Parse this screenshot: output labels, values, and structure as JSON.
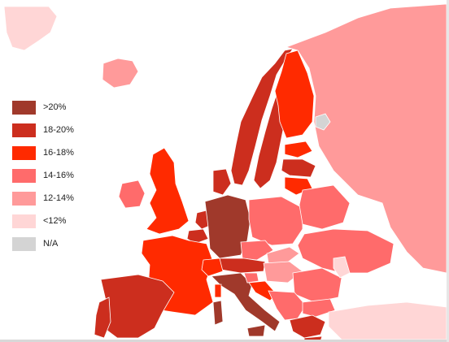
{
  "legend": {
    "items": [
      {
        "label": ">20%",
        "color": "#a0392b"
      },
      {
        "label": "18-20%",
        "color": "#cc2e1e"
      },
      {
        "label": "16-18%",
        "color": "#ff2a00"
      },
      {
        "label": "14-16%",
        "color": "#ff6b6b"
      },
      {
        "label": "12-14%",
        "color": "#ff9a9a"
      },
      {
        "label": "<12%",
        "color": "#ffd6d6"
      },
      {
        "label": "N/A",
        "color": "#d4d4d4"
      }
    ]
  },
  "regions": [
    {
      "name": "greenland-tip",
      "bin": "<12%"
    },
    {
      "name": "iceland",
      "bin": "12-14%"
    },
    {
      "name": "norway",
      "bin": "18-20%"
    },
    {
      "name": "sweden",
      "bin": "18-20%"
    },
    {
      "name": "finland",
      "bin": "16-18%"
    },
    {
      "name": "russia",
      "bin": "12-14%"
    },
    {
      "name": "estonia",
      "bin": "16-18%"
    },
    {
      "name": "latvia",
      "bin": "18-20%"
    },
    {
      "name": "lithuania",
      "bin": "16-18%"
    },
    {
      "name": "karelia-region",
      "bin": "N/A"
    },
    {
      "name": "united-kingdom",
      "bin": "16-18%"
    },
    {
      "name": "ireland",
      "bin": "14-16%"
    },
    {
      "name": "denmark",
      "bin": "18-20%"
    },
    {
      "name": "netherlands",
      "bin": "18-20%"
    },
    {
      "name": "belgium",
      "bin": "18-20%"
    },
    {
      "name": "france",
      "bin": "16-18%"
    },
    {
      "name": "germany",
      "bin": ">20%"
    },
    {
      "name": "poland",
      "bin": "14-16%"
    },
    {
      "name": "belarus",
      "bin": "14-16%"
    },
    {
      "name": "ukraine",
      "bin": "14-16%"
    },
    {
      "name": "czechia",
      "bin": "14-16%"
    },
    {
      "name": "slovakia",
      "bin": "12-14%"
    },
    {
      "name": "austria",
      "bin": "18-20%"
    },
    {
      "name": "switzerland",
      "bin": "16-18%"
    },
    {
      "name": "hungary",
      "bin": "12-14%"
    },
    {
      "name": "romania",
      "bin": "14-16%"
    },
    {
      "name": "moldova",
      "bin": "<12%"
    },
    {
      "name": "italy",
      "bin": ">20%"
    },
    {
      "name": "slovenia",
      "bin": "14-16%"
    },
    {
      "name": "croatia",
      "bin": "16-18%"
    },
    {
      "name": "balkans",
      "bin": "14-16%"
    },
    {
      "name": "bulgaria",
      "bin": "14-16%"
    },
    {
      "name": "greece",
      "bin": "18-20%"
    },
    {
      "name": "turkey",
      "bin": "<12%"
    },
    {
      "name": "spain",
      "bin": "18-20%"
    },
    {
      "name": "portugal",
      "bin": "18-20%"
    },
    {
      "name": "sardinia",
      "bin": ">20%"
    },
    {
      "name": "sicily",
      "bin": ">20%"
    },
    {
      "name": "corsica",
      "bin": "16-18%"
    },
    {
      "name": "crete",
      "bin": "18-20%"
    }
  ]
}
